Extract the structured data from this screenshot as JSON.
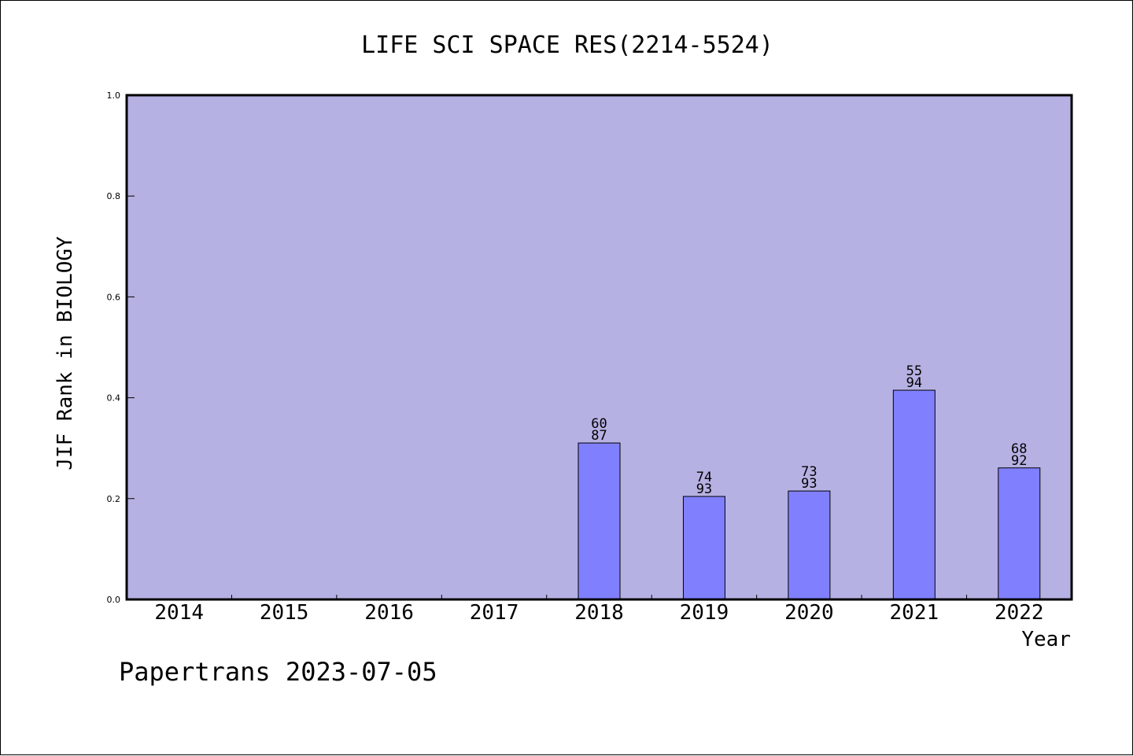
{
  "chart_data": {
    "type": "bar",
    "title": "LIFE SCI SPACE RES(2214-5524)",
    "xlabel": "Year",
    "ylabel": "JIF Rank in BIOLOGY",
    "ylim": [
      0,
      1.0
    ],
    "yticks": [
      "0.0",
      "0.2",
      "0.4",
      "0.6",
      "0.8",
      "1.0"
    ],
    "categories": [
      "2014",
      "2015",
      "2016",
      "2017",
      "2018",
      "2019",
      "2020",
      "2021",
      "2022"
    ],
    "values": [
      null,
      null,
      null,
      null,
      0.3103,
      0.2043,
      0.2151,
      0.4149,
      0.2609
    ],
    "labels": [
      null,
      null,
      null,
      null,
      {
        "rank": "60",
        "total": "87"
      },
      {
        "rank": "74",
        "total": "93"
      },
      {
        "rank": "73",
        "total": "93"
      },
      {
        "rank": "55",
        "total": "94"
      },
      {
        "rank": "68",
        "total": "92"
      }
    ],
    "grid": false,
    "colors": {
      "plot_background": "#b6b1e3",
      "bar_fill": "#8080ff",
      "bar_stroke": "#000000"
    }
  },
  "footer": {
    "watermark": "Papertrans 2023-07-05"
  }
}
